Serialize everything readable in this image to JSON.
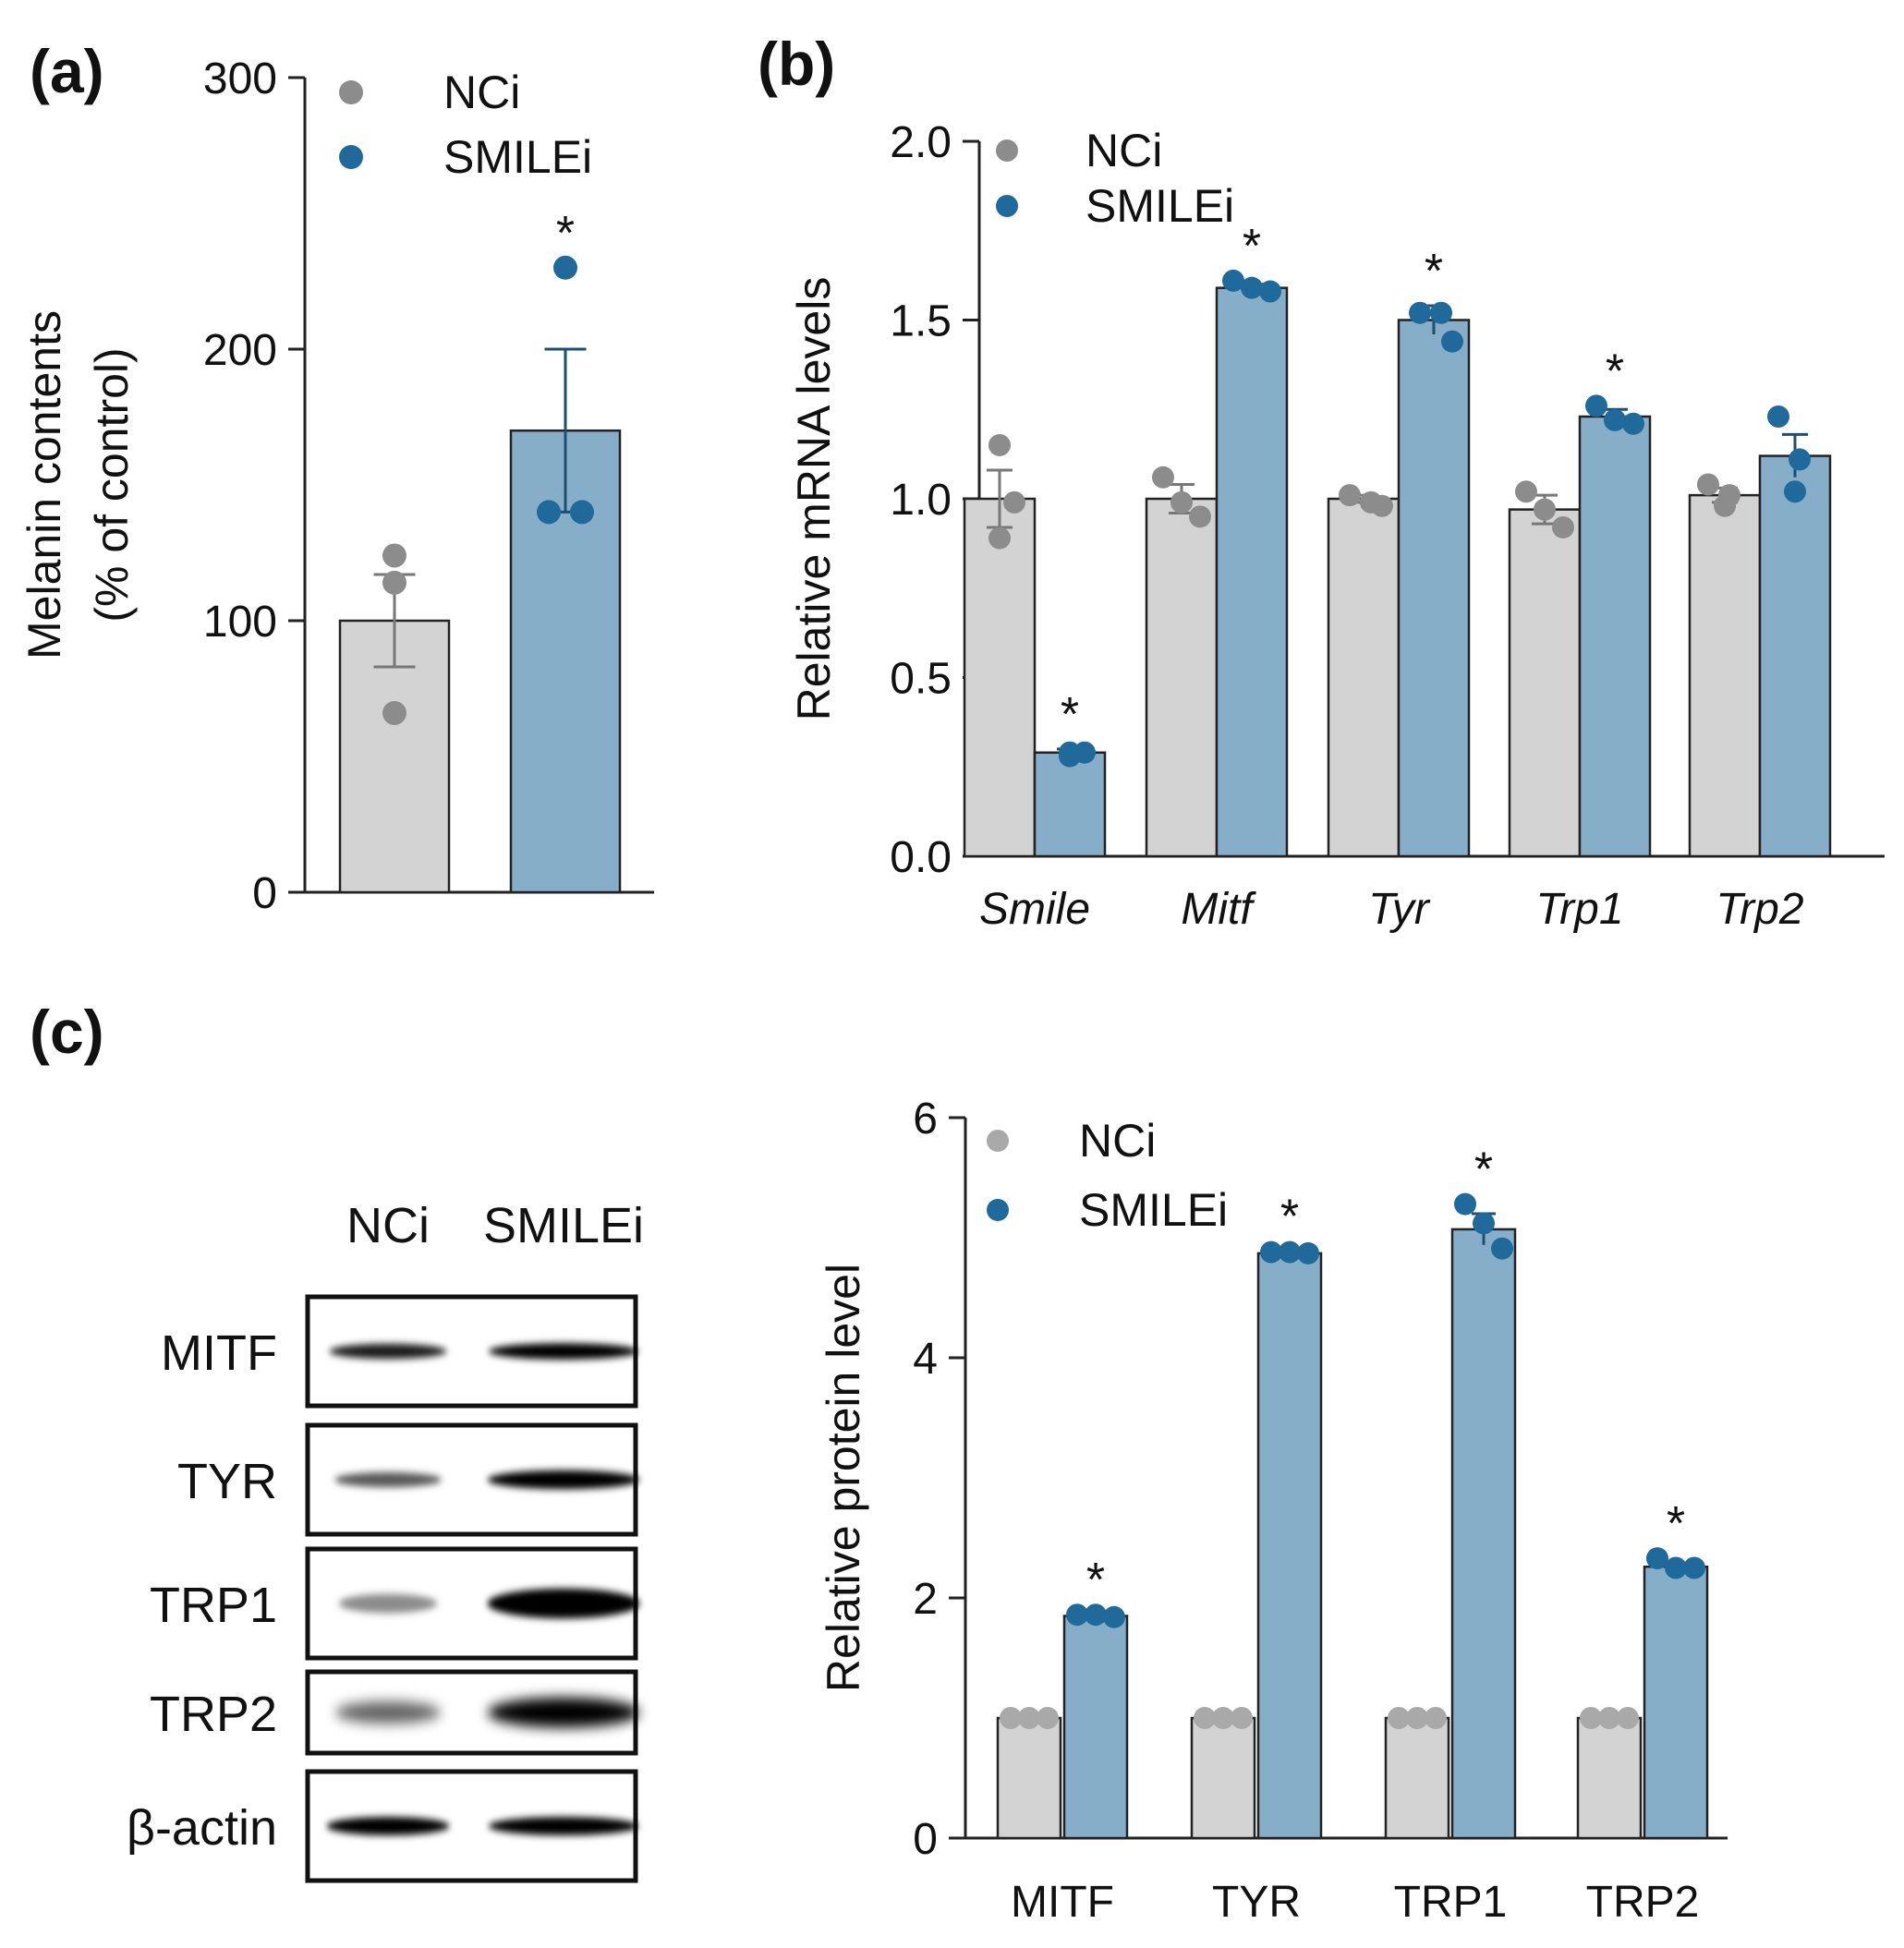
{
  "colors": {
    "nci_bar": "#d3d3d3",
    "nci_dot": "#8c8c8c",
    "nci_dot_light": "#a9a9a9",
    "smilei_bar": "#87aec9",
    "smilei_dot": "#1f6a9a",
    "axis": "#222222"
  },
  "chart_data": [
    {
      "panel": "(a)",
      "type": "bar",
      "title": "",
      "xlabel": "",
      "ylabel": "Melanin contents\n(% of control)",
      "ylabel_lines": [
        "Melanin contents",
        "(% of control)"
      ],
      "ylim": [
        0,
        300
      ],
      "yticks": [
        0,
        100,
        200,
        300
      ],
      "categories": [
        ""
      ],
      "legend": [
        "NCi",
        "SMILEi"
      ],
      "legend_position": "top-left",
      "series": [
        {
          "name": "NCi",
          "values": [
            100
          ],
          "error": [
            17
          ],
          "points": [
            [
              124,
              114,
              66
            ]
          ],
          "significant": [
            false
          ]
        },
        {
          "name": "SMILEi",
          "values": [
            170
          ],
          "error": [
            30
          ],
          "points": [
            [
              230,
              140,
              140
            ]
          ],
          "significant": [
            true
          ]
        }
      ],
      "significance_marker": "*"
    },
    {
      "panel": "(b)",
      "type": "bar",
      "title": "",
      "xlabel": "",
      "ylabel": "Relative mRNA levels",
      "ylim": [
        0,
        2.0
      ],
      "yticks": [
        "0.0",
        "0.5",
        "1.0",
        "1.5",
        "2.0"
      ],
      "categories": [
        "Smile",
        "Mitf",
        "Tyr",
        "Trp1",
        "Trp2"
      ],
      "category_style": "italic",
      "legend": [
        "NCi",
        "SMILEi"
      ],
      "legend_position": "top-left",
      "series": [
        {
          "name": "NCi",
          "values": [
            1.0,
            1.0,
            1.0,
            0.97,
            1.01
          ],
          "error": [
            0.08,
            0.04,
            0.01,
            0.04,
            0.02
          ],
          "points": [
            [
              1.15,
              0.99,
              0.89
            ],
            [
              1.06,
              0.99,
              0.95
            ],
            [
              1.01,
              0.99,
              0.98
            ],
            [
              1.02,
              0.97,
              0.92
            ],
            [
              1.04,
              1.01,
              0.98
            ]
          ],
          "significant": [
            false,
            false,
            false,
            false,
            false
          ]
        },
        {
          "name": "SMILEi",
          "values": [
            0.29,
            1.59,
            1.5,
            1.23,
            1.12
          ],
          "error": [
            0.01,
            0.01,
            0.04,
            0.02,
            0.06
          ],
          "points": [
            [
              0.29,
              0.29,
              0.28
            ],
            [
              1.61,
              1.59,
              1.58
            ],
            [
              1.52,
              1.52,
              1.44
            ],
            [
              1.26,
              1.22,
              1.21
            ],
            [
              1.23,
              1.11,
              1.02
            ]
          ],
          "significant": [
            true,
            true,
            true,
            true,
            false
          ]
        }
      ],
      "significance_marker": "*"
    },
    {
      "panel": "(c)",
      "type": "bar",
      "title": "",
      "xlabel": "",
      "ylabel": "Relative protein level",
      "ylim": [
        0,
        6
      ],
      "yticks": [
        0,
        2,
        4,
        6
      ],
      "categories": [
        "MITF",
        "TYR",
        "TRP1",
        "TRP2"
      ],
      "legend": [
        "NCi",
        "SMILEi"
      ],
      "legend_position": "top-left",
      "series": [
        {
          "name": "NCi",
          "values": [
            1.0,
            1.0,
            1.0,
            1.0
          ],
          "error": [
            0,
            0,
            0,
            0
          ],
          "points": [
            [
              1.0,
              1.0,
              1.0
            ],
            [
              1.0,
              1.0,
              1.0
            ],
            [
              1.0,
              1.0,
              1.0
            ],
            [
              1.0,
              1.0,
              1.0
            ]
          ],
          "significant": [
            false,
            false,
            false,
            false
          ]
        },
        {
          "name": "SMILEi",
          "values": [
            1.85,
            4.87,
            5.07,
            2.26
          ],
          "error": [
            0.01,
            0.02,
            0.13,
            0.03
          ],
          "points": [
            [
              1.86,
              1.86,
              1.84
            ],
            [
              4.88,
              4.88,
              4.87
            ],
            [
              5.28,
              5.12,
              4.91
            ],
            [
              2.33,
              2.25,
              2.25
            ]
          ],
          "significant": [
            true,
            true,
            true,
            true
          ]
        }
      ],
      "significance_marker": "*"
    }
  ],
  "western_blot": {
    "lanes": [
      "NCi",
      "SMILEi"
    ],
    "rows": [
      {
        "label": "MITF",
        "intensity": [
          0.8,
          0.95
        ]
      },
      {
        "label": "TYR",
        "intensity": [
          0.5,
          1.0
        ]
      },
      {
        "label": "TRP1",
        "intensity": [
          0.25,
          1.0
        ]
      },
      {
        "label": "TRP2",
        "intensity": [
          0.45,
          1.0
        ]
      },
      {
        "label": "β-actin",
        "intensity": [
          0.95,
          0.95
        ]
      }
    ]
  }
}
